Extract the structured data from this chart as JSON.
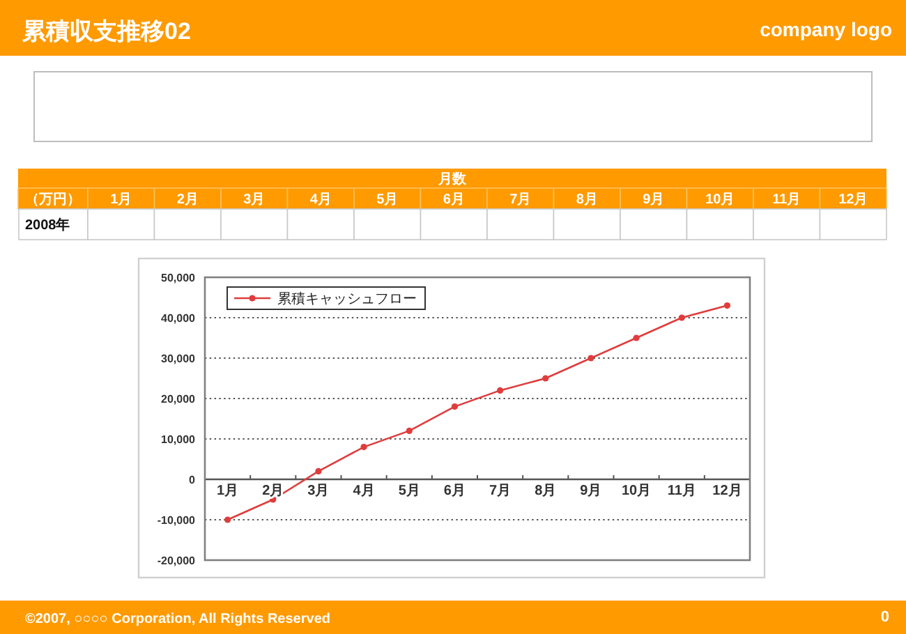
{
  "chart_data": [
    {
      "type": "other",
      "title": "累積収支推移02",
      "annotations": [
        "company logo",
        "©2007, ○○○○ Corporation, All Rights Reserved",
        "0"
      ]
    },
    {
      "type": "heatmap",
      "title": "月数",
      "ylabel": "（万円）",
      "categories": [
        "1月",
        "2月",
        "3月",
        "4月",
        "5月",
        "6月",
        "7月",
        "8月",
        "9月",
        "10月",
        "11月",
        "12月"
      ],
      "y_categories": [
        "2008年"
      ],
      "cells": [
        [
          null,
          null,
          null,
          null,
          null,
          null,
          null,
          null,
          null,
          null,
          null,
          null
        ]
      ]
    },
    {
      "type": "line",
      "categories": [
        "1月",
        "2月",
        "3月",
        "4月",
        "5月",
        "6月",
        "7月",
        "8月",
        "9月",
        "10月",
        "11月",
        "12月"
      ],
      "series": [
        {
          "name": "累積キャッシュフロー",
          "color": "#e03c3c",
          "values": [
            -10000,
            -5000,
            2000,
            8000,
            12000,
            18000,
            22000,
            25000,
            30000,
            35000,
            40000,
            43000
          ]
        }
      ],
      "ylim": [
        -20000,
        50000
      ],
      "yticks": [
        {
          "value": -20000,
          "label": "-20,000"
        },
        {
          "value": -10000,
          "label": "-10,000"
        },
        0,
        {
          "value": 10000,
          "label": "10,000"
        },
        {
          "value": 20000,
          "label": "20,000"
        },
        {
          "value": 30000,
          "label": "30,000"
        },
        {
          "value": 40000,
          "label": "40,000"
        },
        {
          "value": 50000,
          "label": "50,000"
        }
      ],
      "grid": "y",
      "legend": "top left",
      "marker": "circle",
      "line_style": "solid"
    }
  ]
}
